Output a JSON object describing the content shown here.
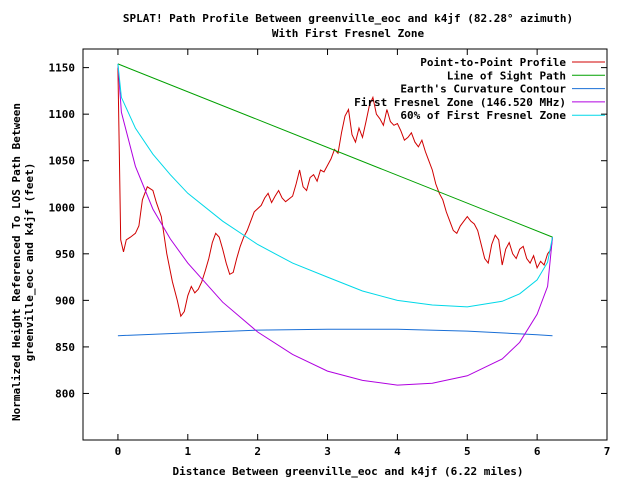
{
  "chart_data": {
    "type": "line",
    "title": "SPLAT! Path Profile Between greenville_eoc and k4jf (82.28° azimuth)",
    "subtitle": "With First Fresnel Zone",
    "xlabel": "Distance Between greenville_eoc and k4jf (6.22 miles)",
    "ylabel": [
      "Normalized Height Referenced To LOS Path Between",
      "greenville_eoc and k4jf (feet)"
    ],
    "xlim": [
      -0.5,
      7
    ],
    "ylim": [
      750,
      1170
    ],
    "xticks": [
      0,
      1,
      2,
      3,
      4,
      5,
      6,
      7
    ],
    "yticks": [
      800,
      850,
      900,
      950,
      1000,
      1050,
      1100,
      1150
    ],
    "legend_position": "top-right",
    "grid": false,
    "colors": {
      "profile": "#d00000",
      "los": "#00a000",
      "curvature": "#1a6fd6",
      "fresnel": "#b000e0",
      "fresnel60": "#00d8e8"
    },
    "series": [
      {
        "name": "Point-to-Point Profile",
        "color_key": "profile",
        "points": [
          [
            0,
            1150
          ],
          [
            0.02,
            1060
          ],
          [
            0.04,
            965
          ],
          [
            0.08,
            952
          ],
          [
            0.12,
            965
          ],
          [
            0.18,
            968
          ],
          [
            0.25,
            972
          ],
          [
            0.3,
            980
          ],
          [
            0.35,
            1008
          ],
          [
            0.42,
            1022
          ],
          [
            0.5,
            1018
          ],
          [
            0.55,
            1005
          ],
          [
            0.62,
            990
          ],
          [
            0.7,
            950
          ],
          [
            0.78,
            920
          ],
          [
            0.85,
            900
          ],
          [
            0.9,
            883
          ],
          [
            0.95,
            888
          ],
          [
            1.0,
            905
          ],
          [
            1.05,
            915
          ],
          [
            1.1,
            908
          ],
          [
            1.15,
            912
          ],
          [
            1.2,
            920
          ],
          [
            1.25,
            932
          ],
          [
            1.3,
            945
          ],
          [
            1.35,
            962
          ],
          [
            1.4,
            972
          ],
          [
            1.45,
            968
          ],
          [
            1.5,
            955
          ],
          [
            1.55,
            940
          ],
          [
            1.6,
            928
          ],
          [
            1.65,
            930
          ],
          [
            1.7,
            945
          ],
          [
            1.75,
            958
          ],
          [
            1.8,
            968
          ],
          [
            1.85,
            975
          ],
          [
            1.9,
            985
          ],
          [
            1.95,
            995
          ],
          [
            2.05,
            1002
          ],
          [
            2.1,
            1010
          ],
          [
            2.15,
            1015
          ],
          [
            2.2,
            1005
          ],
          [
            2.25,
            1012
          ],
          [
            2.3,
            1018
          ],
          [
            2.35,
            1010
          ],
          [
            2.4,
            1006
          ],
          [
            2.5,
            1012
          ],
          [
            2.55,
            1025
          ],
          [
            2.6,
            1040
          ],
          [
            2.65,
            1022
          ],
          [
            2.7,
            1018
          ],
          [
            2.75,
            1032
          ],
          [
            2.8,
            1035
          ],
          [
            2.85,
            1028
          ],
          [
            2.9,
            1040
          ],
          [
            2.95,
            1038
          ],
          [
            3.0,
            1045
          ],
          [
            3.05,
            1052
          ],
          [
            3.1,
            1062
          ],
          [
            3.15,
            1058
          ],
          [
            3.2,
            1080
          ],
          [
            3.25,
            1098
          ],
          [
            3.3,
            1105
          ],
          [
            3.35,
            1078
          ],
          [
            3.4,
            1070
          ],
          [
            3.45,
            1085
          ],
          [
            3.5,
            1075
          ],
          [
            3.55,
            1092
          ],
          [
            3.6,
            1110
          ],
          [
            3.65,
            1118
          ],
          [
            3.7,
            1100
          ],
          [
            3.75,
            1095
          ],
          [
            3.8,
            1088
          ],
          [
            3.85,
            1105
          ],
          [
            3.9,
            1092
          ],
          [
            3.95,
            1088
          ],
          [
            4.0,
            1090
          ],
          [
            4.05,
            1082
          ],
          [
            4.1,
            1072
          ],
          [
            4.15,
            1075
          ],
          [
            4.2,
            1080
          ],
          [
            4.25,
            1070
          ],
          [
            4.3,
            1065
          ],
          [
            4.35,
            1072
          ],
          [
            4.4,
            1060
          ],
          [
            4.45,
            1050
          ],
          [
            4.5,
            1040
          ],
          [
            4.55,
            1025
          ],
          [
            4.6,
            1015
          ],
          [
            4.65,
            1008
          ],
          [
            4.7,
            995
          ],
          [
            4.75,
            985
          ],
          [
            4.8,
            975
          ],
          [
            4.85,
            972
          ],
          [
            4.9,
            980
          ],
          [
            4.95,
            985
          ],
          [
            5.0,
            990
          ],
          [
            5.05,
            985
          ],
          [
            5.1,
            982
          ],
          [
            5.15,
            975
          ],
          [
            5.2,
            960
          ],
          [
            5.25,
            945
          ],
          [
            5.3,
            940
          ],
          [
            5.35,
            960
          ],
          [
            5.4,
            970
          ],
          [
            5.45,
            965
          ],
          [
            5.5,
            938
          ],
          [
            5.55,
            955
          ],
          [
            5.6,
            962
          ],
          [
            5.65,
            950
          ],
          [
            5.7,
            945
          ],
          [
            5.75,
            955
          ],
          [
            5.8,
            958
          ],
          [
            5.85,
            945
          ],
          [
            5.9,
            940
          ],
          [
            5.95,
            948
          ],
          [
            6.0,
            935
          ],
          [
            6.05,
            942
          ],
          [
            6.1,
            938
          ],
          [
            6.15,
            950
          ],
          [
            6.2,
            955
          ],
          [
            6.22,
            968
          ]
        ]
      },
      {
        "name": "Line of Sight Path",
        "color_key": "los",
        "points": [
          [
            0,
            1154
          ],
          [
            6.22,
            968
          ]
        ]
      },
      {
        "name": "Earth's Curvature Contour",
        "color_key": "curvature",
        "points": [
          [
            0,
            862
          ],
          [
            1,
            865
          ],
          [
            2,
            868
          ],
          [
            3,
            869
          ],
          [
            4,
            869
          ],
          [
            5,
            867
          ],
          [
            6,
            863
          ],
          [
            6.22,
            862
          ]
        ]
      },
      {
        "name": "First Fresnel Zone (146.520 MHz)",
        "color_key": "fresnel",
        "points": [
          [
            0,
            1154
          ],
          [
            0.05,
            1102
          ],
          [
            0.25,
            1044
          ],
          [
            0.5,
            998
          ],
          [
            0.75,
            966
          ],
          [
            1.0,
            940
          ],
          [
            1.5,
            898
          ],
          [
            2.0,
            866
          ],
          [
            2.5,
            842
          ],
          [
            3.0,
            824
          ],
          [
            3.5,
            814
          ],
          [
            4.0,
            809
          ],
          [
            4.5,
            811
          ],
          [
            5.0,
            819
          ],
          [
            5.5,
            837
          ],
          [
            5.75,
            855
          ],
          [
            6.0,
            885
          ],
          [
            6.15,
            915
          ],
          [
            6.22,
            968
          ]
        ]
      },
      {
        "name": "60% of First Fresnel Zone",
        "color_key": "fresnel60",
        "points": [
          [
            0,
            1154
          ],
          [
            0.05,
            1118
          ],
          [
            0.25,
            1085
          ],
          [
            0.5,
            1057
          ],
          [
            0.75,
            1035
          ],
          [
            1.0,
            1015
          ],
          [
            1.5,
            985
          ],
          [
            2.0,
            960
          ],
          [
            2.5,
            940
          ],
          [
            3.0,
            925
          ],
          [
            3.5,
            910
          ],
          [
            4.0,
            900
          ],
          [
            4.5,
            895
          ],
          [
            5.0,
            893
          ],
          [
            5.5,
            899
          ],
          [
            5.75,
            907
          ],
          [
            6.0,
            922
          ],
          [
            6.15,
            941
          ],
          [
            6.22,
            968
          ]
        ]
      }
    ]
  }
}
